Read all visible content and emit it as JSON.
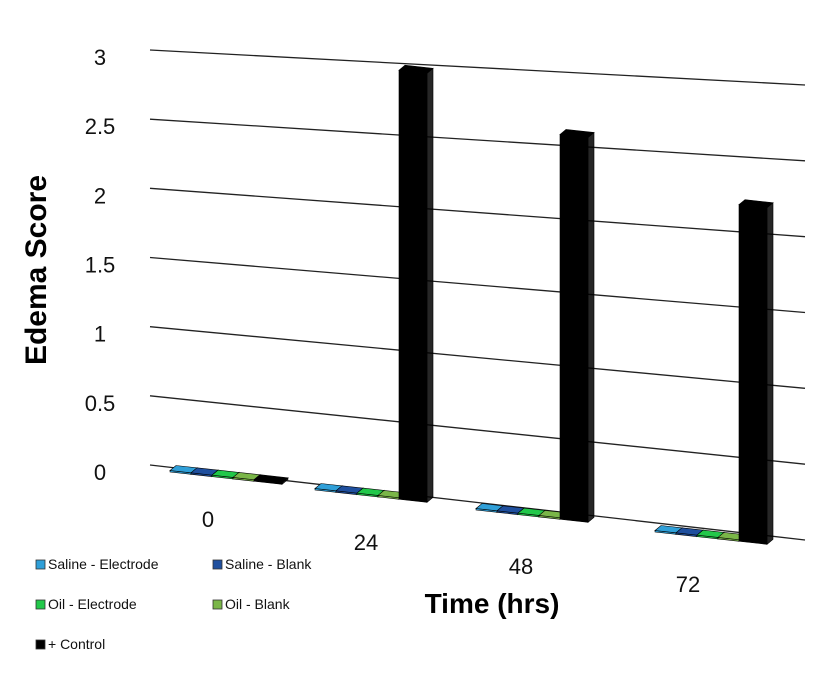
{
  "chart_data": {
    "type": "bar",
    "style": "3d-clustered",
    "title": "",
    "xlabel": "Time (hrs)",
    "ylabel": "Edema Score",
    "categories": [
      "0",
      "24",
      "48",
      "72"
    ],
    "yticks": [
      "0",
      "0.5",
      "1",
      "1.5",
      "2",
      "2.5",
      "3"
    ],
    "ylim": [
      0,
      3
    ],
    "grid": true,
    "legend_position": "bottom-left",
    "series": [
      {
        "name": "Saline - Electrode",
        "color": "#2f9fd8",
        "values": [
          0,
          0,
          0,
          0
        ]
      },
      {
        "name": "Saline - Blank",
        "color": "#1f4f9e",
        "values": [
          0,
          0,
          0,
          0
        ]
      },
      {
        "name": "Oil - Electrode",
        "color": "#22c84a",
        "values": [
          0,
          0,
          0,
          0
        ]
      },
      {
        "name": "Oil - Blank",
        "color": "#7ab648",
        "values": [
          0,
          0,
          0,
          0
        ]
      },
      {
        "name": "+ Control",
        "color": "#000000",
        "values": [
          0,
          3.0,
          2.6,
          2.2
        ]
      }
    ]
  }
}
